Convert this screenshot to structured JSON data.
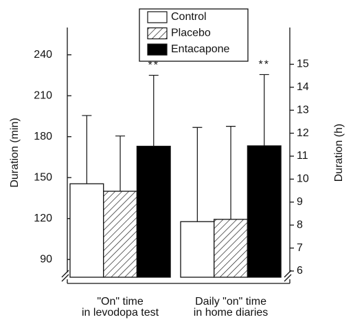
{
  "chart_data": {
    "type": "bar",
    "categories": [
      [
        "\"On\" time",
        "in levodopa test"
      ],
      [
        "Daily \"on\" time",
        "in home diaries"
      ]
    ],
    "category_axes": [
      "y",
      "y2"
    ],
    "ylabel": "Duration (min)",
    "y2label": "Duration (h)",
    "ylim": [
      77,
      260
    ],
    "yticks": [
      90,
      120,
      150,
      180,
      210,
      240
    ],
    "y2lim": [
      5.73,
      16.6
    ],
    "y2ticks": [
      6,
      7,
      8,
      9,
      10,
      11,
      12,
      13,
      14,
      15
    ],
    "series": [
      {
        "name": "Control",
        "color": "#ffffff",
        "hatch": false,
        "values": [
          145.5,
          8.15
        ],
        "errors": [
          50,
          4.1
        ]
      },
      {
        "name": "Placebo",
        "color": "#ffffff",
        "hatch": true,
        "values": [
          140,
          8.25
        ],
        "errors": [
          40.5,
          4.05
        ]
      },
      {
        "name": "Entacapone",
        "color": "#000000",
        "hatch": false,
        "values": [
          173,
          11.45
        ],
        "errors": [
          52,
          3.1
        ],
        "value_annotations": [
          "**",
          "**"
        ]
      }
    ],
    "legend": "top"
  }
}
